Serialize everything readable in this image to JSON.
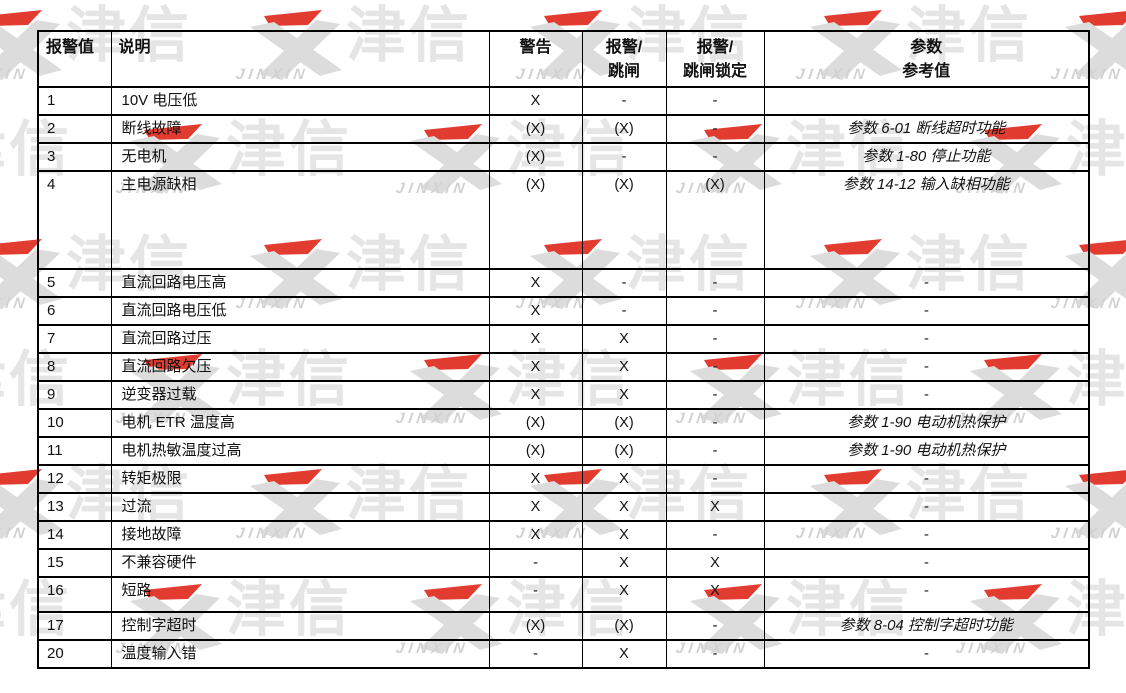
{
  "watermark": {
    "cjk_text": "津信",
    "latin_text": "JINXIN",
    "gray_color": "#dcdcdc",
    "cjk_color": "#e5e5e5",
    "latin_color": "#d2d2d2",
    "accent_color": "#e23b30"
  },
  "table": {
    "headers": [
      {
        "id": "alarm-value",
        "lines": [
          "报警值"
        ],
        "align": "left"
      },
      {
        "id": "description",
        "lines": [
          "说明"
        ],
        "align": "left"
      },
      {
        "id": "warning",
        "lines": [
          "警告"
        ],
        "align": "center"
      },
      {
        "id": "alarm-trip",
        "lines": [
          "报警/",
          "跳闸"
        ],
        "align": "center"
      },
      {
        "id": "alarm-trip-lock",
        "lines": [
          "报警/",
          "跳闸锁定"
        ],
        "align": "center"
      },
      {
        "id": "parameter",
        "lines": [
          "参数",
          "参考值"
        ],
        "align": "center"
      }
    ],
    "rows": [
      {
        "value": "1",
        "description": "10V 电压低",
        "warning": "X",
        "alarm_trip": "-",
        "alarm_trip_lock": "-",
        "parameter": ""
      },
      {
        "value": "2",
        "description": "断线故障",
        "warning": "(X)",
        "alarm_trip": "(X)",
        "alarm_trip_lock": "-",
        "parameter": "参数 6-01 断线超时功能"
      },
      {
        "value": "3",
        "description": "无电机",
        "warning": "(X)",
        "alarm_trip": "-",
        "alarm_trip_lock": "-",
        "parameter": "参数 1-80 停止功能"
      },
      {
        "value": "4",
        "description": "主电源缺相",
        "warning": "(X)",
        "alarm_trip": "(X)",
        "alarm_trip_lock": "(X)",
        "parameter": "参数 14-12 输入缺相功能"
      },
      {
        "value": "5",
        "description": "直流回路电压高",
        "warning": "X",
        "alarm_trip": "-",
        "alarm_trip_lock": "-",
        "parameter": "-"
      },
      {
        "value": "6",
        "description": "直流回路电压低",
        "warning": "X",
        "alarm_trip": "-",
        "alarm_trip_lock": "-",
        "parameter": "-"
      },
      {
        "value": "7",
        "description": "直流回路过压",
        "warning": "X",
        "alarm_trip": "X",
        "alarm_trip_lock": "-",
        "parameter": "-"
      },
      {
        "value": "8",
        "description": "直流回路欠压",
        "warning": "X",
        "alarm_trip": "X",
        "alarm_trip_lock": "-",
        "parameter": "-"
      },
      {
        "value": "9",
        "description": "逆变器过载",
        "warning": "X",
        "alarm_trip": "X",
        "alarm_trip_lock": "-",
        "parameter": "-"
      },
      {
        "value": "10",
        "description": "电机 ETR 温度高",
        "warning": "(X)",
        "alarm_trip": "(X)",
        "alarm_trip_lock": "-",
        "parameter": "参数 1-90 电动机热保护"
      },
      {
        "value": "11",
        "description": "电机热敏温度过高",
        "warning": "(X)",
        "alarm_trip": "(X)",
        "alarm_trip_lock": "-",
        "parameter": "参数 1-90 电动机热保护"
      },
      {
        "value": "12",
        "description": "转矩极限",
        "warning": "X",
        "alarm_trip": "X",
        "alarm_trip_lock": "-",
        "parameter": "-"
      },
      {
        "value": "13",
        "description": "过流",
        "warning": "X",
        "alarm_trip": "X",
        "alarm_trip_lock": "X",
        "parameter": "-"
      },
      {
        "value": "14",
        "description": "接地故障",
        "warning": "X",
        "alarm_trip": "X",
        "alarm_trip_lock": "-",
        "parameter": "-"
      },
      {
        "value": "15",
        "description": "不兼容硬件",
        "warning": "-",
        "alarm_trip": "X",
        "alarm_trip_lock": "X",
        "parameter": "-"
      },
      {
        "value": "16",
        "description": "短路",
        "warning": "-",
        "alarm_trip": "X",
        "alarm_trip_lock": "X",
        "parameter": "-"
      },
      {
        "value": "17",
        "description": "控制字超时",
        "warning": "(X)",
        "alarm_trip": "(X)",
        "alarm_trip_lock": "-",
        "parameter": "参数 8-04 控制字超时功能"
      },
      {
        "value": "20",
        "description": "温度输入错",
        "warning": "-",
        "alarm_trip": "X",
        "alarm_trip_lock": "-",
        "parameter": "-"
      }
    ]
  }
}
